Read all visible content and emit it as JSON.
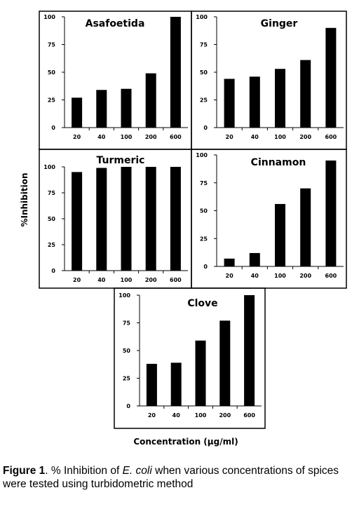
{
  "chart_data": [
    {
      "type": "bar",
      "title": "Asafoetida",
      "categories": [
        "20",
        "40",
        "100",
        "200",
        "600"
      ],
      "values": [
        27,
        34,
        35,
        49,
        100
      ],
      "ylim": [
        0,
        100
      ],
      "yticks": [
        "0",
        "25",
        "50",
        "75",
        "100"
      ],
      "grid": false
    },
    {
      "type": "bar",
      "title": "Ginger",
      "categories": [
        "20",
        "40",
        "100",
        "200",
        "600"
      ],
      "values": [
        44,
        46,
        53,
        61,
        90
      ],
      "ylim": [
        0,
        100
      ],
      "yticks": [
        "0",
        "25",
        "50",
        "75",
        "100"
      ],
      "grid": false
    },
    {
      "type": "bar",
      "title": "Turmeric",
      "categories": [
        "20",
        "40",
        "100",
        "200",
        "600"
      ],
      "values": [
        95,
        99,
        100,
        100,
        100
      ],
      "ylim": [
        0,
        100
      ],
      "yticks": [
        "0",
        "25",
        "50",
        "75",
        "100"
      ],
      "grid": false
    },
    {
      "type": "bar",
      "title": "Cinnamon",
      "categories": [
        "20",
        "40",
        "100",
        "200",
        "600"
      ],
      "values": [
        7,
        12,
        56,
        70,
        95
      ],
      "ylim": [
        0,
        100
      ],
      "yticks": [
        "0",
        "25",
        "50",
        "75",
        "100"
      ],
      "grid": false
    },
    {
      "type": "bar",
      "title": "Clove",
      "categories": [
        "20",
        "40",
        "100",
        "200",
        "600"
      ],
      "values": [
        38,
        39,
        59,
        77,
        100
      ],
      "ylim": [
        0,
        100
      ],
      "yticks": [
        "0",
        "25",
        "50",
        "75",
        "100"
      ],
      "grid": false
    }
  ],
  "axes": {
    "ylabel": "%Inhibition",
    "xlabel": "Concentration (µg/ml)"
  },
  "caption": {
    "label": "Figure 1",
    "pre": ". % Inhibition of ",
    "organism": "E. coli",
    "post": " when various concentrations of spices were tested using turbidometric method"
  }
}
